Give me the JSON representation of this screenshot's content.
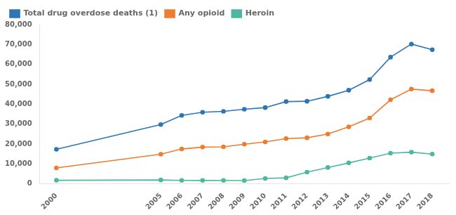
{
  "chart_data": {
    "type": "line",
    "x": [
      2000,
      2005,
      2006,
      2007,
      2008,
      2009,
      2010,
      2011,
      2012,
      2013,
      2014,
      2015,
      2016,
      2017,
      2018
    ],
    "series": [
      {
        "name": "Total drug overdose deaths (1)",
        "color": "#2e75b6",
        "marker": "circle",
        "values": [
          17415,
          29813,
          34425,
          36010,
          36450,
          37485,
          38329,
          41340,
          41502,
          43982,
          47055,
          52404,
          63632,
          70237,
          67367
        ]
      },
      {
        "name": "Any opioid",
        "color": "#ed7d31",
        "marker": "circle",
        "values": [
          8048,
          14918,
          17545,
          18515,
          18648,
          19954,
          21089,
          22784,
          23166,
          25052,
          28647,
          33091,
          42249,
          47600,
          46802
        ]
      },
      {
        "name": "Heroin",
        "color": "#4db8a0",
        "marker": "circle",
        "values": [
          1842,
          2009,
          1779,
          1750,
          1804,
          1717,
          2789,
          3066,
          5925,
          8257,
          10574,
          12989,
          15469,
          15958,
          14996
        ]
      }
    ],
    "xlim": [
      1999.2,
      2018.8
    ],
    "xticks": [
      2000,
      2005,
      2006,
      2007,
      2008,
      2009,
      2010,
      2011,
      2012,
      2013,
      2014,
      2015,
      2016,
      2017,
      2018
    ],
    "ylim": [
      0,
      80000
    ],
    "yticks": [
      0,
      {
        "value": 10000,
        "label": "10,000"
      },
      {
        "value": 20000,
        "label": "20,000"
      },
      {
        "value": 30000,
        "label": "30,000"
      },
      {
        "value": 40000,
        "label": "40,000"
      },
      {
        "value": 50000,
        "label": "50,000"
      },
      {
        "value": 60000,
        "label": "60,000"
      },
      {
        "value": 70000,
        "label": "70,000"
      },
      {
        "value": 80000,
        "label": "80,000"
      }
    ],
    "grid": false,
    "legend": "upper left"
  }
}
